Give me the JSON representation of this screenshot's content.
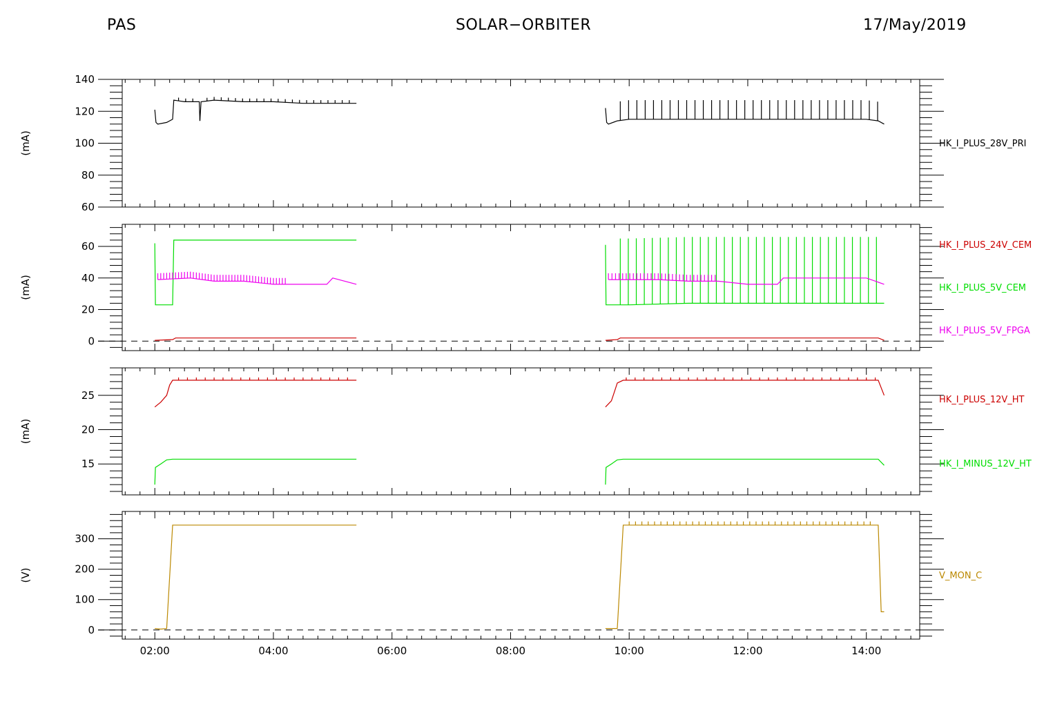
{
  "header": {
    "left": "PAS",
    "center": "SOLAR−ORBITER",
    "right": "17/May/2019"
  },
  "colors": {
    "black": "#000000",
    "red": "#cc0000",
    "green": "#00dd00",
    "magenta": "#ee00ee",
    "olive": "#bb8800",
    "axis": "#000000"
  },
  "chart_data": [
    {
      "type": "line",
      "ylabel": "(mA)",
      "ylim": [
        60,
        140
      ],
      "yticks": [
        60,
        80,
        100,
        120,
        140
      ],
      "ytick_labels": [
        "60",
        "80",
        "100",
        "120",
        "140"
      ],
      "series": [
        {
          "name": "HK_I_PLUS_28V_PRI",
          "color": "#000000",
          "segments": [
            {
              "x": [
                2.0,
                2.02,
                2.05,
                2.2,
                2.3,
                2.32,
                2.5,
                2.75,
                2.76,
                2.78,
                3.0,
                3.5,
                4.0,
                4.5,
                5.0,
                5.4
              ],
              "y": [
                121,
                113,
                112,
                113,
                115,
                127,
                126,
                126,
                114,
                126,
                127,
                126,
                126,
                125,
                125,
                125
              ],
              "spikes": {
                "start": 2.4,
                "step": 0.12,
                "end": 5.35,
                "height": 2
              }
            },
            {
              "x": [
                9.6,
                9.62,
                9.65,
                9.8,
                10.0,
                10.5,
                11.0,
                11.5,
                12.0,
                12.5,
                13.0,
                13.5,
                14.0,
                14.2,
                14.3
              ],
              "y": [
                122,
                113,
                112,
                114,
                115,
                115,
                115,
                115,
                115,
                115,
                115,
                115,
                115,
                114,
                112
              ],
              "spikes": {
                "start": 9.85,
                "step": 0.14,
                "end": 14.2,
                "height": 12
              }
            }
          ]
        }
      ]
    },
    {
      "type": "line",
      "ylabel": "(mA)",
      "ylim": [
        -6,
        74
      ],
      "yticks": [
        0,
        20,
        40,
        60
      ],
      "ytick_labels": [
        "0",
        "20",
        "40",
        "60"
      ],
      "zero_line": true,
      "series": [
        {
          "name": "HK_I_PLUS_24V_CEM",
          "color": "#cc0000",
          "segments": [
            {
              "x": [
                2.0,
                2.3,
                2.35,
                3.0,
                4.0,
                5.0,
                5.4
              ],
              "y": [
                0.5,
                1,
                2,
                2,
                2,
                2,
                2
              ]
            },
            {
              "x": [
                9.6,
                9.8,
                9.85,
                11.0,
                12.0,
                13.0,
                14.2,
                14.3
              ],
              "y": [
                0.5,
                1,
                2,
                2,
                2,
                2,
                2,
                0.5
              ]
            }
          ]
        },
        {
          "name": "HK_I_PLUS_5V_CEM",
          "color": "#00dd00",
          "segments": [
            {
              "x": [
                2.0,
                2.01,
                2.02,
                2.3,
                2.32,
                3.0,
                4.0,
                5.0,
                5.4
              ],
              "y": [
                62,
                23,
                23,
                23,
                64,
                64,
                64,
                64,
                64
              ]
            },
            {
              "x": [
                9.6,
                9.61,
                9.62,
                10.0,
                11.0,
                12.0,
                13.0,
                14.0,
                14.3
              ],
              "y": [
                61,
                23,
                23,
                23,
                24,
                24,
                24,
                24,
                24
              ],
              "spikes": {
                "start": 9.85,
                "step": 0.135,
                "end": 14.2,
                "height": 42
              }
            }
          ]
        },
        {
          "name": "HK_I_PLUS_5V_FPGA",
          "color": "#ee00ee",
          "segments": [
            {
              "x": [
                2.05,
                2.6,
                3.0,
                3.5,
                4.0,
                4.5,
                4.9,
                5.0,
                5.4
              ],
              "y": [
                39,
                40,
                38,
                38,
                36,
                36,
                36,
                40,
                36
              ],
              "spikes": {
                "start": 2.05,
                "step": 0.05,
                "end": 4.2,
                "height": 4
              }
            },
            {
              "x": [
                9.65,
                10.5,
                11.0,
                11.5,
                12.0,
                12.5,
                12.6,
                13.0,
                14.0,
                14.3
              ],
              "y": [
                39,
                39,
                38,
                38,
                36,
                36,
                40,
                40,
                40,
                36
              ],
              "spikes": {
                "start": 9.65,
                "step": 0.06,
                "end": 11.5,
                "height": 4
              }
            }
          ]
        }
      ]
    },
    {
      "type": "line",
      "ylabel": "(mA)",
      "ylim": [
        10.5,
        29
      ],
      "yticks": [
        15,
        20,
        25
      ],
      "ytick_labels": [
        "15",
        "20",
        "25"
      ],
      "series": [
        {
          "name": "HK_I_PLUS_12V_HT",
          "color": "#cc0000",
          "segments": [
            {
              "x": [
                2.0,
                2.1,
                2.2,
                2.25,
                2.3,
                3.0,
                4.0,
                5.0,
                5.4
              ],
              "y": [
                23.3,
                24.0,
                25.0,
                26.5,
                27.2,
                27.2,
                27.2,
                27.2,
                27.2
              ],
              "spikes": {
                "start": 2.4,
                "step": 0.15,
                "end": 5.35,
                "height": 0.4
              }
            },
            {
              "x": [
                9.6,
                9.7,
                9.75,
                9.8,
                9.9,
                11.0,
                12.0,
                13.0,
                14.2,
                14.3
              ],
              "y": [
                23.3,
                24.2,
                25.5,
                26.8,
                27.2,
                27.2,
                27.2,
                27.2,
                27.2,
                25.0
              ],
              "spikes": {
                "start": 9.95,
                "step": 0.15,
                "end": 14.15,
                "height": 0.4
              }
            }
          ]
        },
        {
          "name": "HK_I_MINUS_12V_HT",
          "color": "#00dd00",
          "segments": [
            {
              "x": [
                2.0,
                2.01,
                2.1,
                2.2,
                2.3,
                3.0,
                4.0,
                5.0,
                5.4
              ],
              "y": [
                12,
                14.5,
                15,
                15.6,
                15.7,
                15.7,
                15.7,
                15.7,
                15.7
              ]
            },
            {
              "x": [
                9.6,
                9.61,
                9.7,
                9.8,
                9.9,
                11.0,
                12.0,
                13.0,
                14.2,
                14.3
              ],
              "y": [
                12,
                14.5,
                15,
                15.6,
                15.7,
                15.7,
                15.7,
                15.7,
                15.7,
                14.8
              ]
            }
          ]
        }
      ]
    },
    {
      "type": "line",
      "ylabel": "(V)",
      "ylim": [
        -30,
        390
      ],
      "yticks": [
        0,
        100,
        200,
        300
      ],
      "ytick_labels": [
        "0",
        "100",
        "200",
        "300"
      ],
      "zero_line": true,
      "series": [
        {
          "name": "V_MON_C",
          "color": "#bb8800",
          "segments": [
            {
              "x": [
                2.0,
                2.1,
                2.2,
                2.3,
                3.0,
                4.0,
                5.0,
                5.4
              ],
              "y": [
                5,
                3,
                5,
                345,
                345,
                345,
                345,
                345
              ]
            },
            {
              "x": [
                9.6,
                9.75,
                9.8,
                9.9,
                11.0,
                12.0,
                13.0,
                14.2,
                14.25,
                14.3
              ],
              "y": [
                5,
                5,
                5,
                345,
                345,
                345,
                345,
                345,
                60,
                60
              ],
              "spikes": {
                "start": 10.0,
                "step": 0.107,
                "end": 14.15,
                "height": 12
              }
            }
          ]
        }
      ]
    }
  ],
  "x_axis": {
    "xlim": [
      1.45,
      14.9
    ],
    "ticks": [
      2,
      4,
      6,
      8,
      10,
      12,
      14
    ],
    "tick_labels": [
      "02:00",
      "04:00",
      "06:00",
      "08:00",
      "10:00",
      "12:00",
      "14:00"
    ]
  }
}
